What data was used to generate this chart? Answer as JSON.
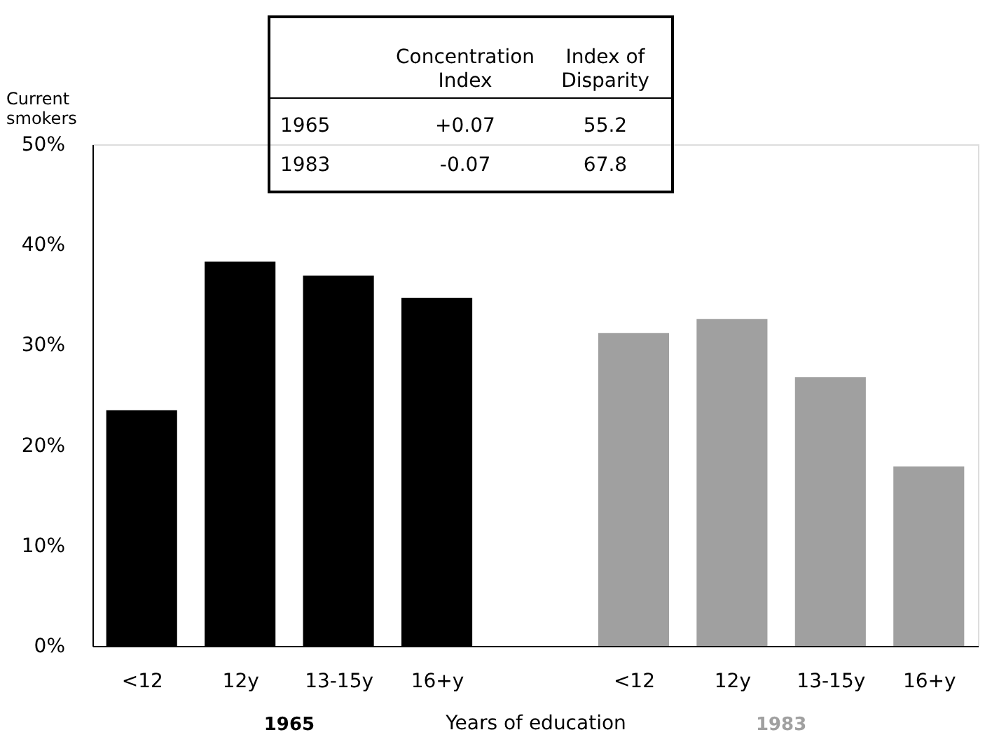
{
  "chart_data": {
    "type": "bar",
    "categories": [
      "<12",
      "12y",
      "13-15y",
      "16+y",
      null,
      "<12",
      "12y",
      "13-15y",
      "16+y"
    ],
    "series": [
      {
        "name": "1965",
        "color": "#000000",
        "values": [
          23.5,
          38.3,
          36.9,
          34.7,
          null,
          null,
          null,
          null,
          null
        ]
      },
      {
        "name": "1983",
        "color": "#a0a0a0",
        "values": [
          null,
          null,
          null,
          null,
          null,
          31.2,
          32.6,
          26.8,
          17.9
        ]
      }
    ],
    "xlabel": "Years of education",
    "ylabel": "Current smokers",
    "ylim": [
      0,
      50
    ],
    "yticks": [
      {
        "value": 0,
        "label": "0%"
      },
      {
        "value": 10,
        "label": "10%"
      },
      {
        "value": 20,
        "label": "20%"
      },
      {
        "value": 30,
        "label": "30%"
      },
      {
        "value": 40,
        "label": "40%"
      },
      {
        "value": 50,
        "label": "50%"
      }
    ],
    "annotations": [
      "Concentration Index",
      "Index of Disparity",
      "1965",
      "+0.07",
      "55.2",
      "1983",
      "-0.07",
      "67.8"
    ],
    "grid": false,
    "legend": false
  }
}
